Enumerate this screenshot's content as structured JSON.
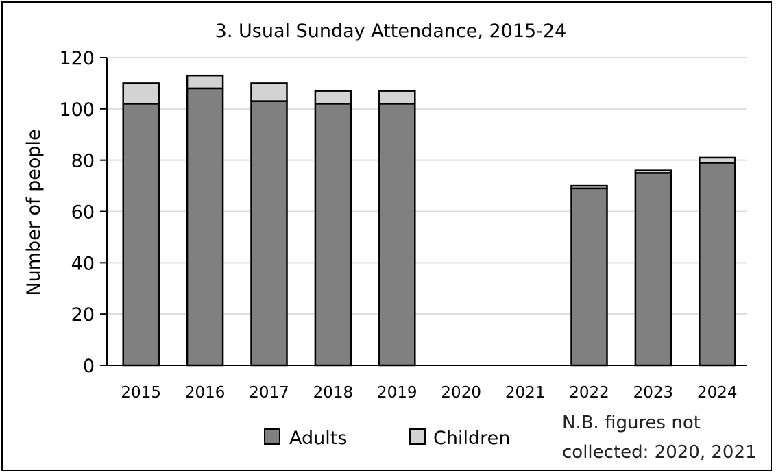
{
  "chart_data": {
    "type": "bar",
    "stacked": true,
    "title": "3. Usual Sunday Attendance, 2015-24",
    "ylabel": "Number of people",
    "xlabel": "",
    "ylim": [
      0,
      120
    ],
    "yticks": [
      "0",
      "20",
      "40",
      "60",
      "80",
      "100",
      "120"
    ],
    "grid": true,
    "categories": [
      "2015",
      "2016",
      "2017",
      "2018",
      "2019",
      "2020",
      "2021",
      "2022",
      "2023",
      "2024"
    ],
    "series": [
      {
        "name": "Adults",
        "color": "#808080",
        "values": [
          102,
          108,
          103,
          102,
          102,
          null,
          null,
          69,
          75,
          79
        ]
      },
      {
        "name": "Children",
        "color": "#d3d3d3",
        "values": [
          8,
          5,
          7,
          5,
          5,
          null,
          null,
          1,
          1,
          2
        ]
      }
    ],
    "legend_position": "bottom",
    "note": [
      "N.B. figures not",
      "collected: 2020, 2021"
    ]
  }
}
